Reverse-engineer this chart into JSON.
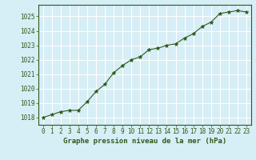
{
  "x": [
    0,
    1,
    2,
    3,
    4,
    5,
    6,
    7,
    8,
    9,
    10,
    11,
    12,
    13,
    14,
    15,
    16,
    17,
    18,
    19,
    20,
    21,
    22,
    23
  ],
  "y": [
    1018.0,
    1018.2,
    1018.4,
    1018.5,
    1018.5,
    1019.1,
    1019.8,
    1020.3,
    1021.1,
    1021.6,
    1022.0,
    1022.2,
    1022.7,
    1022.8,
    1023.0,
    1023.1,
    1023.5,
    1023.8,
    1024.3,
    1024.6,
    1025.2,
    1025.3,
    1025.4,
    1025.3
  ],
  "line_color": "#2d5a1b",
  "marker": "*",
  "bg_color": "#d6eef5",
  "grid_color": "#ffffff",
  "ylabel_ticks": [
    1018,
    1019,
    1020,
    1021,
    1022,
    1023,
    1024,
    1025
  ],
  "xlabel_ticks": [
    0,
    1,
    2,
    3,
    4,
    5,
    6,
    7,
    8,
    9,
    10,
    11,
    12,
    13,
    14,
    15,
    16,
    17,
    18,
    19,
    20,
    21,
    22,
    23
  ],
  "ylim": [
    1017.5,
    1025.8
  ],
  "xlim": [
    -0.5,
    23.5
  ],
  "xlabel": "Graphe pression niveau de la mer (hPa)",
  "xlabel_color": "#2d5a1b",
  "tick_color": "#2d5a1b",
  "axis_label_fontsize": 6.5,
  "tick_fontsize": 5.5
}
